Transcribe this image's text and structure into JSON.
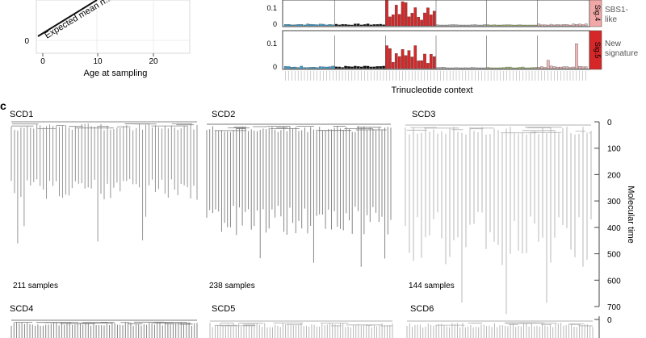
{
  "panel_b_left": {
    "xlabel": "Age at sampling",
    "xticks": [
      "0",
      "10",
      "20"
    ],
    "ytick_zero": "0",
    "line_label": "Expected mean n..."
  },
  "panel_b_right": {
    "xlabel": "Trinucleotide context",
    "upper": {
      "yticks": [
        "0.1",
        "0"
      ],
      "strip": "Sig.4",
      "side_label": [
        "SBS1-",
        "like"
      ]
    },
    "lower": {
      "yticks": [
        "0.1",
        "0"
      ],
      "strip": "Sig.5",
      "side_label": [
        "New",
        "signature"
      ]
    }
  },
  "panel_c": {
    "label": "c",
    "axis_label": "Molecular time",
    "axis_ticks": [
      "0",
      "100",
      "200",
      "300",
      "400",
      "500",
      "600",
      "700"
    ],
    "trees": [
      {
        "name": "SCD1",
        "samples": "211 samples",
        "count": 211
      },
      {
        "name": "SCD2",
        "samples": "238 samples",
        "count": 238
      },
      {
        "name": "SCD3",
        "samples": "144 samples",
        "count": 144
      },
      {
        "name": "SCD4",
        "samples": "",
        "count": null
      },
      {
        "name": "SCD5",
        "samples": "",
        "count": null
      },
      {
        "name": "SCD6",
        "samples": "",
        "count": null
      }
    ],
    "axis2_tick": "0"
  },
  "colors": {
    "c_to_t": "#d62728",
    "c_to_a": "#3aa0d5",
    "c_to_g": "#111111",
    "t_to_a": "#bfbfbf",
    "t_to_c": "#a6c464",
    "t_to_g": "#efb8b8",
    "strip_upper": "#f2a7a7",
    "strip_lower": "#d62728",
    "tree_dark": "#7a7a7a",
    "tree_mid": "#8a8a8a",
    "tree_light": "#b0b0b0"
  }
}
